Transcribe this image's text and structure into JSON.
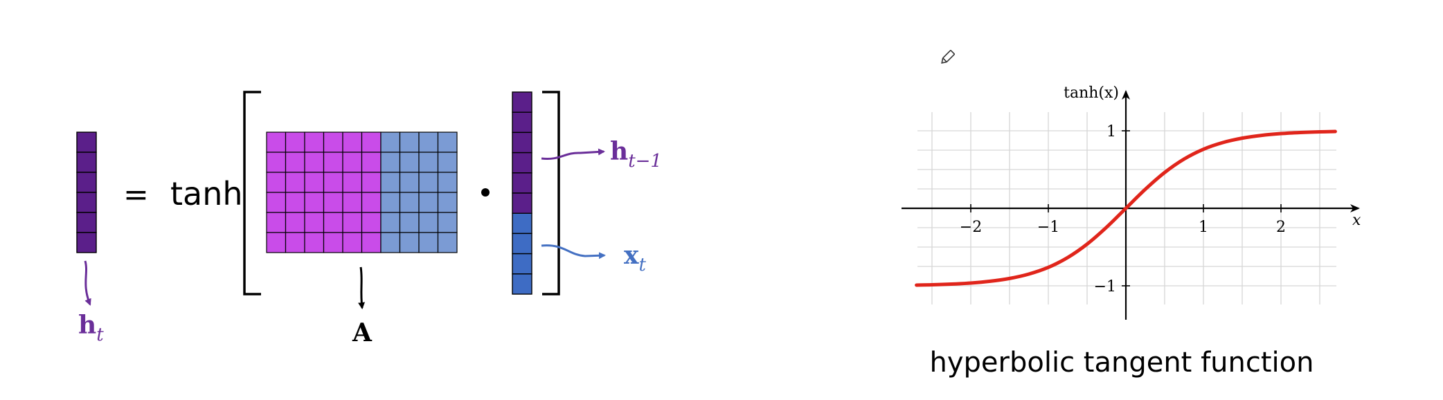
{
  "equation": {
    "lhs_label": "h",
    "lhs_sub": "t",
    "equals": "=",
    "function": "tanh",
    "dot": "•",
    "matrix_label": "A",
    "prev_label": "h",
    "prev_sub": "t−1",
    "input_label": "x",
    "input_sub": "t",
    "colors": {
      "hidden": "#5b1f8a",
      "matrix_hidden_part": "#c94ce9",
      "matrix_input_part": "#7b9bd4",
      "input": "#3e6cc4",
      "arrow_purple": "#6a2e99",
      "arrow_blue": "#4470c2"
    }
  },
  "chart_data": {
    "type": "line",
    "title": "hyperbolic tangent function",
    "xlabel": "x",
    "ylabel": "tanh(x)",
    "xlim": [
      -2.7,
      2.7
    ],
    "ylim": [
      -1.4,
      1.4
    ],
    "x_ticks": [
      -2,
      -1,
      1,
      2
    ],
    "x_tick_labels": [
      "−2",
      "−1",
      "1",
      "2"
    ],
    "y_ticks": [
      1,
      -1
    ],
    "y_tick_labels": [
      "1",
      "−1"
    ],
    "grid": true,
    "series": [
      {
        "color": "#e0251b",
        "x": [
          -2.7,
          -2.5,
          -2.25,
          -2.0,
          -1.75,
          -1.5,
          -1.25,
          -1.0,
          -0.75,
          -0.5,
          -0.25,
          0.0,
          0.25,
          0.5,
          0.75,
          1.0,
          1.25,
          1.5,
          1.75,
          2.0,
          2.25,
          2.5,
          2.7
        ],
        "values": [
          -0.991,
          -0.987,
          -0.978,
          -0.964,
          -0.941,
          -0.905,
          -0.848,
          -0.762,
          -0.635,
          -0.462,
          -0.245,
          0.0,
          0.245,
          0.462,
          0.635,
          0.762,
          0.848,
          0.905,
          0.941,
          0.964,
          0.978,
          0.987,
          0.991
        ]
      }
    ]
  },
  "icons": {
    "pencil": "pencil-icon"
  }
}
